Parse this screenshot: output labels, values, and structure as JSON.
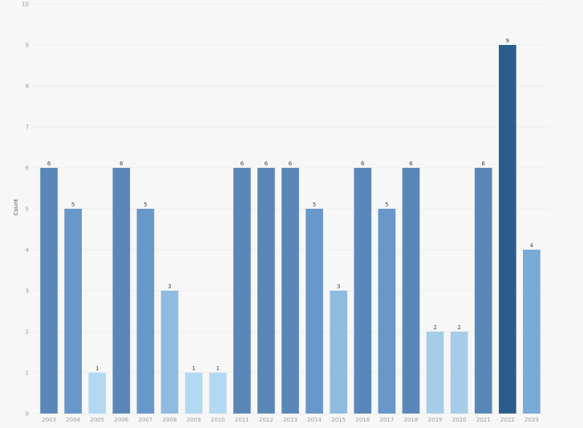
{
  "chart_data": {
    "type": "bar",
    "title": "",
    "xlabel": "",
    "ylabel": "Count",
    "categories": [
      "2003",
      "2004",
      "2005",
      "2006",
      "2007",
      "2008",
      "2009",
      "2010",
      "2011",
      "2012",
      "2013",
      "2014",
      "2015",
      "2016",
      "2017",
      "2018",
      "2019",
      "2020",
      "2021",
      "2022",
      "2023"
    ],
    "values": [
      6,
      5,
      1,
      6,
      5,
      3,
      1,
      1,
      6,
      6,
      6,
      5,
      3,
      6,
      5,
      6,
      2,
      2,
      6,
      9,
      4
    ],
    "ylim": [
      0,
      10
    ],
    "yticks": [
      "0",
      "1",
      "2",
      "3",
      "4",
      "5",
      "6",
      "7",
      "8",
      "9",
      "10"
    ],
    "grid": true,
    "legend": "none",
    "colors": {
      "v1": "#b3d9f2",
      "v2": "#a6cde8",
      "v3": "#8fbbe0",
      "v4": "#7aaad6",
      "v5": "#6897c9",
      "v6": "#5a87b8",
      "v9": "#2b5d8c"
    }
  }
}
